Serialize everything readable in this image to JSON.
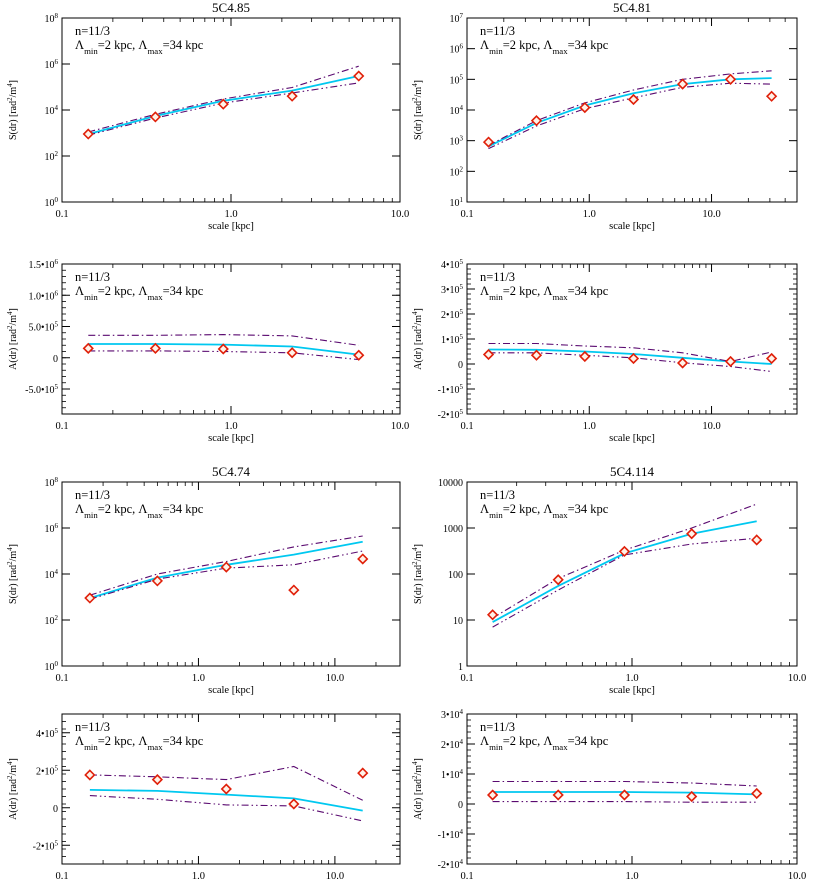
{
  "colors": {
    "model": "#00c8f0",
    "envelope": "#5a0a70",
    "observed": "#e0200a",
    "axes": "#000000"
  },
  "chart_data": [
    {
      "type": "line",
      "yscale": "log",
      "xscale": "log",
      "title": "5C4.85",
      "xlabel": "scale [kpc]",
      "ylabel": "S(dr) [rad²/m⁴]",
      "annotation": {
        "n": "n=11/3",
        "lambda": "Λmin=2 kpc, Λmax=34 kpc"
      },
      "xlim": [
        0.1,
        10.0
      ],
      "xticks": [
        {
          "v": 0.1,
          "l": "0.1"
        },
        {
          "v": 1.0,
          "l": "1.0"
        },
        {
          "v": 10.0,
          "l": "10.0"
        }
      ],
      "ylim": [
        1,
        100000000
      ],
      "yticks": [
        {
          "v": 1,
          "l": "10⁰"
        },
        {
          "v": 100,
          "l": "10²"
        },
        {
          "v": 10000,
          "l": "10⁴"
        },
        {
          "v": 1000000,
          "l": "10⁶"
        },
        {
          "v": 100000000,
          "l": "10⁸"
        }
      ],
      "series": [
        {
          "kind": "model",
          "x": [
            0.143,
            0.357,
            0.9,
            2.3,
            5.7
          ],
          "y": [
            900,
            5500,
            25000,
            70000,
            300000
          ]
        },
        {
          "kind": "upper",
          "x": [
            0.143,
            0.357,
            0.9,
            2.3,
            5.7
          ],
          "y": [
            1100,
            6500,
            30000,
            95000,
            800000
          ]
        },
        {
          "kind": "lower",
          "x": [
            0.143,
            0.357,
            0.9,
            2.3,
            5.7
          ],
          "y": [
            800,
            4500,
            20000,
            55000,
            150000
          ]
        },
        {
          "kind": "observed",
          "x": [
            0.143,
            0.357,
            0.9,
            2.3,
            5.7
          ],
          "y": [
            900,
            5000,
            18000,
            40000,
            300000
          ]
        }
      ]
    },
    {
      "type": "line",
      "yscale": "log",
      "xscale": "log",
      "title": "5C4.81",
      "xlabel": "scale [kpc]",
      "ylabel": "S(dr) [rad²/m⁴]",
      "annotation": {
        "n": "n=11/3",
        "lambda": "Λmin=2 kpc, Λmax=34 kpc"
      },
      "xlim": [
        0.1,
        50
      ],
      "xticks": [
        {
          "v": 0.1,
          "l": "0.1"
        },
        {
          "v": 1.0,
          "l": "1.0"
        },
        {
          "v": 10.0,
          "l": "10.0"
        }
      ],
      "ylim": [
        10,
        10000000
      ],
      "yticks": [
        {
          "v": 10,
          "l": "10¹"
        },
        {
          "v": 100,
          "l": "10²"
        },
        {
          "v": 1000,
          "l": "10³"
        },
        {
          "v": 10000,
          "l": "10⁴"
        },
        {
          "v": 100000,
          "l": "10⁵"
        },
        {
          "v": 1000000,
          "l": "10⁶"
        },
        {
          "v": 10000000,
          "l": "10⁷"
        }
      ],
      "series": [
        {
          "kind": "model",
          "x": [
            0.15,
            0.37,
            0.92,
            2.3,
            5.8,
            14.3,
            31
          ],
          "y": [
            650,
            3800,
            14000,
            35000,
            70000,
            100000,
            110000
          ]
        },
        {
          "kind": "upper",
          "x": [
            0.15,
            0.37,
            0.92,
            2.3,
            5.8,
            14.3,
            31
          ],
          "y": [
            700,
            4500,
            17000,
            45000,
            100000,
            150000,
            190000
          ]
        },
        {
          "kind": "lower",
          "x": [
            0.15,
            0.37,
            0.92,
            2.3,
            5.8,
            14.3,
            31
          ],
          "y": [
            550,
            3000,
            11000,
            25000,
            55000,
            75000,
            70000
          ]
        },
        {
          "kind": "observed",
          "x": [
            0.15,
            0.37,
            0.92,
            2.3,
            5.8,
            14.3,
            31
          ],
          "y": [
            900,
            4500,
            12000,
            22000,
            70000,
            100000,
            28000
          ]
        }
      ]
    },
    {
      "type": "line",
      "yscale": "linear",
      "xscale": "log",
      "title": "",
      "xlabel": "scale [kpc]",
      "ylabel": "A(dr) [rad²/m⁴]",
      "annotation": {
        "n": "n=11/3",
        "lambda": "Λmin=2 kpc, Λmax=34 kpc"
      },
      "xlim": [
        0.1,
        10.0
      ],
      "xticks": [
        {
          "v": 0.1,
          "l": "0.1"
        },
        {
          "v": 1.0,
          "l": "1.0"
        },
        {
          "v": 10.0,
          "l": "10.0"
        }
      ],
      "ylim": [
        -900000,
        1500000
      ],
      "yticks": [
        {
          "v": -500000,
          "l": "-5.0•10⁵"
        },
        {
          "v": 0,
          "l": "0"
        },
        {
          "v": 500000,
          "l": "5.0•10⁵"
        },
        {
          "v": 1000000,
          "l": "1.0•10⁶"
        },
        {
          "v": 1500000,
          "l": "1.5•10⁶"
        }
      ],
      "series": [
        {
          "kind": "model",
          "x": [
            0.143,
            0.357,
            0.9,
            2.3,
            5.7
          ],
          "y": [
            220000,
            220000,
            210000,
            180000,
            50000
          ]
        },
        {
          "kind": "upper",
          "x": [
            0.143,
            0.357,
            0.9,
            2.3,
            5.7
          ],
          "y": [
            360000,
            360000,
            370000,
            350000,
            200000
          ]
        },
        {
          "kind": "lower",
          "x": [
            0.143,
            0.357,
            0.9,
            2.3,
            5.7
          ],
          "y": [
            110000,
            110000,
            100000,
            80000,
            -30000
          ]
        },
        {
          "kind": "observed",
          "x": [
            0.143,
            0.357,
            0.9,
            2.3,
            5.7
          ],
          "y": [
            150000,
            150000,
            140000,
            80000,
            40000
          ]
        }
      ]
    },
    {
      "type": "line",
      "yscale": "linear",
      "xscale": "log",
      "title": "",
      "xlabel": "scale [kpc]",
      "ylabel": "A(dr) [rad²/m⁴]",
      "annotation": {
        "n": "n=11/3",
        "lambda": "Λmin=2 kpc, Λmax=34 kpc"
      },
      "xlim": [
        0.1,
        50
      ],
      "xticks": [
        {
          "v": 0.1,
          "l": "0.1"
        },
        {
          "v": 1.0,
          "l": "1.0"
        },
        {
          "v": 10.0,
          "l": "10.0"
        }
      ],
      "ylim": [
        -200000,
        400000
      ],
      "yticks": [
        {
          "v": -200000,
          "l": "-2•10⁵"
        },
        {
          "v": -100000,
          "l": "-1•10⁵"
        },
        {
          "v": 0,
          "l": "0"
        },
        {
          "v": 100000,
          "l": "1•10⁵"
        },
        {
          "v": 200000,
          "l": "2•10⁵"
        },
        {
          "v": 300000,
          "l": "3•10⁵"
        },
        {
          "v": 400000,
          "l": "4•10⁵"
        }
      ],
      "series": [
        {
          "kind": "model",
          "x": [
            0.15,
            0.37,
            0.92,
            2.3,
            5.8,
            14.3,
            31
          ],
          "y": [
            58000,
            57000,
            50000,
            40000,
            25000,
            10000,
            0
          ]
        },
        {
          "kind": "upper",
          "x": [
            0.15,
            0.37,
            0.92,
            2.3,
            5.8,
            14.3,
            31
          ],
          "y": [
            82000,
            82000,
            72000,
            65000,
            45000,
            10000,
            48000
          ]
        },
        {
          "kind": "lower",
          "x": [
            0.15,
            0.37,
            0.92,
            2.3,
            5.8,
            14.3,
            31
          ],
          "y": [
            45000,
            45000,
            35000,
            25000,
            5000,
            -10000,
            -30000
          ]
        },
        {
          "kind": "observed",
          "x": [
            0.15,
            0.37,
            0.92,
            2.3,
            5.8,
            14.3,
            31
          ],
          "y": [
            38000,
            35000,
            30000,
            22000,
            4000,
            10000,
            22000
          ]
        }
      ]
    },
    {
      "type": "line",
      "yscale": "log",
      "xscale": "log",
      "title": "5C4.74",
      "xlabel": "scale [kpc]",
      "ylabel": "S(dr) [rad²/m⁴]",
      "annotation": {
        "n": "n=11/3",
        "lambda": "Λmin=2 kpc, Λmax=34 kpc"
      },
      "xlim": [
        0.1,
        30
      ],
      "xticks": [
        {
          "v": 0.1,
          "l": "0.1"
        },
        {
          "v": 1.0,
          "l": "1.0"
        },
        {
          "v": 10.0,
          "l": "10.0"
        }
      ],
      "ylim": [
        1,
        100000000
      ],
      "yticks": [
        {
          "v": 1,
          "l": "10⁰"
        },
        {
          "v": 100,
          "l": "10²"
        },
        {
          "v": 10000,
          "l": "10⁴"
        },
        {
          "v": 1000000,
          "l": "10⁶"
        },
        {
          "v": 100000000,
          "l": "10⁸"
        }
      ],
      "series": [
        {
          "kind": "model",
          "x": [
            0.16,
            0.5,
            1.6,
            5,
            16
          ],
          "y": [
            900,
            7000,
            25000,
            70000,
            250000
          ]
        },
        {
          "kind": "upper",
          "x": [
            0.16,
            0.5,
            1.6,
            5,
            16
          ],
          "y": [
            1200,
            10000,
            35000,
            150000,
            450000
          ]
        },
        {
          "kind": "lower",
          "x": [
            0.16,
            0.5,
            1.6,
            5,
            16
          ],
          "y": [
            800,
            6000,
            18000,
            25000,
            100000
          ]
        },
        {
          "kind": "observed",
          "x": [
            0.16,
            0.5,
            1.6,
            5,
            16
          ],
          "y": [
            900,
            5000,
            20000,
            2000,
            45000
          ]
        }
      ]
    },
    {
      "type": "line",
      "yscale": "log",
      "xscale": "log",
      "title": "5C4.114",
      "xlabel": "scale [kpc]",
      "ylabel": "S(dr) [rad²/m⁴]",
      "annotation": {
        "n": "n=11/3",
        "lambda": "Λmin=2 kpc, Λmax=34 kpc"
      },
      "xlim": [
        0.1,
        10.0
      ],
      "xticks": [
        {
          "v": 0.1,
          "l": "0.1"
        },
        {
          "v": 1.0,
          "l": "1.0"
        },
        {
          "v": 10.0,
          "l": "10.0"
        }
      ],
      "ylim": [
        1,
        10000
      ],
      "yticks": [
        {
          "v": 1,
          "l": "1"
        },
        {
          "v": 10,
          "l": "10"
        },
        {
          "v": 100,
          "l": "100"
        },
        {
          "v": 1000,
          "l": "1000"
        },
        {
          "v": 10000,
          "l": "10000"
        }
      ],
      "series": [
        {
          "kind": "model",
          "x": [
            0.143,
            0.357,
            0.9,
            2.3,
            5.7
          ],
          "y": [
            9,
            55,
            280,
            750,
            1400
          ]
        },
        {
          "kind": "upper",
          "x": [
            0.143,
            0.357,
            0.9,
            2.3,
            5.7
          ],
          "y": [
            11,
            80,
            330,
            1000,
            3300
          ]
        },
        {
          "kind": "lower",
          "x": [
            0.143,
            0.357,
            0.9,
            2.3,
            5.7
          ],
          "y": [
            7,
            45,
            260,
            450,
            600
          ]
        },
        {
          "kind": "observed",
          "x": [
            0.143,
            0.357,
            0.9,
            2.3,
            5.7
          ],
          "y": [
            13,
            75,
            310,
            750,
            550
          ]
        }
      ]
    },
    {
      "type": "line",
      "yscale": "linear",
      "xscale": "log",
      "title": "",
      "xlabel": "scale [kpc]",
      "ylabel": "A(dr) [rad²/m⁴]",
      "annotation": {
        "n": "n=11/3",
        "lambda": "Λmin=2 kpc, Λmax=34 kpc"
      },
      "xlim": [
        0.1,
        30
      ],
      "xticks": [
        {
          "v": 0.1,
          "l": "0.1"
        },
        {
          "v": 1.0,
          "l": "1.0"
        },
        {
          "v": 10.0,
          "l": "10.0"
        }
      ],
      "ylim": [
        -300000,
        500000
      ],
      "yticks": [
        {
          "v": -200000,
          "l": "-2•10⁵"
        },
        {
          "v": 0,
          "l": "0"
        },
        {
          "v": 200000,
          "l": "2•10⁵"
        },
        {
          "v": 400000,
          "l": "4•10⁵"
        }
      ],
      "series": [
        {
          "kind": "model",
          "x": [
            0.16,
            0.5,
            1.6,
            5,
            16
          ],
          "y": [
            95000,
            90000,
            70000,
            50000,
            -15000
          ]
        },
        {
          "kind": "upper",
          "x": [
            0.16,
            0.5,
            1.6,
            5,
            16
          ],
          "y": [
            175000,
            165000,
            150000,
            220000,
            40000
          ]
        },
        {
          "kind": "lower",
          "x": [
            0.16,
            0.5,
            1.6,
            5,
            16
          ],
          "y": [
            65000,
            45000,
            15000,
            10000,
            -70000
          ]
        },
        {
          "kind": "observed",
          "x": [
            0.16,
            0.5,
            1.6,
            5,
            16
          ],
          "y": [
            175000,
            150000,
            100000,
            20000,
            185000
          ]
        }
      ]
    },
    {
      "type": "line",
      "yscale": "linear",
      "xscale": "log",
      "title": "",
      "xlabel": "scale [kpc]",
      "ylabel": "A(dr) [rad²/m⁴]",
      "annotation": {
        "n": "n=11/3",
        "lambda": "Λmin=2 kpc, Λmax=34 kpc"
      },
      "xlim": [
        0.1,
        10.0
      ],
      "xticks": [
        {
          "v": 0.1,
          "l": "0.1"
        },
        {
          "v": 1.0,
          "l": "1.0"
        },
        {
          "v": 10.0,
          "l": "10.0"
        }
      ],
      "ylim": [
        -20000,
        30000
      ],
      "yticks": [
        {
          "v": -20000,
          "l": "-2•10⁴"
        },
        {
          "v": -10000,
          "l": "-1•10⁴"
        },
        {
          "v": 0,
          "l": "0"
        },
        {
          "v": 10000,
          "l": "1•10⁴"
        },
        {
          "v": 20000,
          "l": "2•10⁴"
        },
        {
          "v": 30000,
          "l": "3•10⁴"
        }
      ],
      "series": [
        {
          "kind": "model",
          "x": [
            0.143,
            0.357,
            0.9,
            2.3,
            5.7
          ],
          "y": [
            4000,
            4000,
            4000,
            3800,
            3200
          ]
        },
        {
          "kind": "upper",
          "x": [
            0.143,
            0.357,
            0.9,
            2.3,
            5.7
          ],
          "y": [
            7500,
            7500,
            7500,
            7000,
            6000
          ]
        },
        {
          "kind": "lower",
          "x": [
            0.143,
            0.357,
            0.9,
            2.3,
            5.7
          ],
          "y": [
            800,
            800,
            800,
            600,
            600
          ]
        },
        {
          "kind": "observed",
          "x": [
            0.143,
            0.357,
            0.9,
            2.3,
            5.7
          ],
          "y": [
            3000,
            3000,
            3000,
            2500,
            3500
          ]
        }
      ]
    }
  ]
}
